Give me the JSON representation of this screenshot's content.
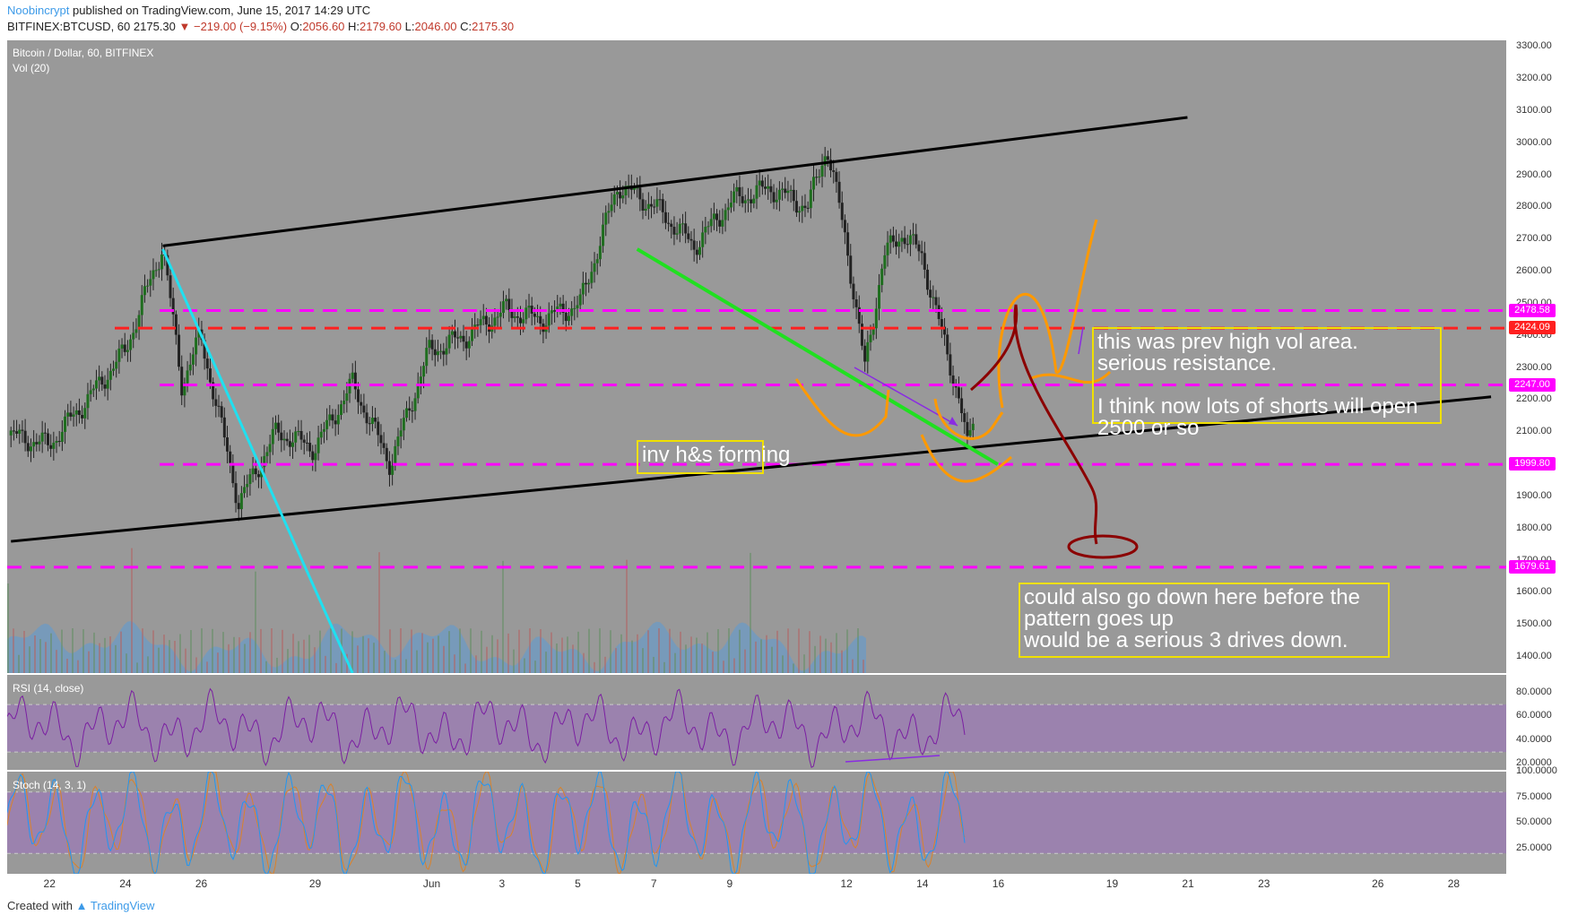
{
  "header": {
    "author": "Noobincrypt",
    "published": "published on TradingView.com, June 15, 2017 14:29 UTC",
    "symbol": "BITFINEX:BTCUSD, 60",
    "last": "2175.30",
    "change": "▼ −219.00 (−9.15%)",
    "o_label": "O:",
    "o": "2056.60",
    "h_label": "H:",
    "h": "2179.60",
    "l_label": "L:",
    "l": "2046.00",
    "c_label": "C:",
    "c": "2175.30"
  },
  "pane_labels": {
    "main_title": "Bitcoin / Dollar, 60, BITFINEX",
    "vol": "Vol (20)",
    "rsi": "RSI (14, close)",
    "stoch": "Stoch (14, 3, 1)"
  },
  "notes": {
    "resistance": "this was prev high vol area.\nserious resistance.\n\nI think now lots of shorts will open\n2500 or so",
    "invhs": "inv h&s forming",
    "drives": "could also go down here before the\npattern goes up\nwould be a serious 3 drives down."
  },
  "footer": {
    "created": "Created with",
    "brand": "TradingView"
  },
  "colors": {
    "pane_bg": "#999999",
    "magenta": "#ff00ff",
    "red_line": "#ff2020",
    "note_border": "#f0e000",
    "cyan": "#20e0f0",
    "green": "#20e020",
    "orange": "#ff9900",
    "darkred": "#8b0000",
    "purple": "#8a2be2"
  },
  "price_tags": [
    {
      "value": "2478.58",
      "color": "#ff00ff"
    },
    {
      "value": "2424.09",
      "color": "#ff2020"
    },
    {
      "value": "2247.00",
      "color": "#ff00ff"
    },
    {
      "value": "1999.80",
      "color": "#ff00ff"
    },
    {
      "value": "1679.61",
      "color": "#ff00ff"
    }
  ],
  "chart_data": [
    {
      "type": "candlestick",
      "title": "Bitcoin / Dollar, 60, BITFINEX",
      "ylim": [
        1350,
        3320
      ],
      "y_ticks": [
        "3300.00",
        "3200.00",
        "3100.00",
        "3000.00",
        "2900.00",
        "2800.00",
        "2700.00",
        "2600.00",
        "2500.00",
        "2400.00",
        "2300.00",
        "2200.00",
        "2100.00",
        "2000.00",
        "1900.00",
        "1800.00",
        "1700.00",
        "1600.00",
        "1500.00",
        "1400.00"
      ],
      "x_ticks": [
        "22",
        "24",
        "26",
        "29",
        "Jun",
        "3",
        "5",
        "7",
        "9",
        "12",
        "14",
        "16",
        "19",
        "21",
        "23",
        "26",
        "28"
      ],
      "price_path": [
        {
          "x": "May 21",
          "y": 2090
        },
        {
          "x": "May 22",
          "y": 2060
        },
        {
          "x": "May 23",
          "y": 2200
        },
        {
          "x": "May 24",
          "y": 2350
        },
        {
          "x": "May 25",
          "y": 2680
        },
        {
          "x": "May 25.5",
          "y": 2250
        },
        {
          "x": "May 26",
          "y": 2400
        },
        {
          "x": "May 27",
          "y": 1880
        },
        {
          "x": "May 28",
          "y": 2100
        },
        {
          "x": "May 29",
          "y": 2050
        },
        {
          "x": "May 30",
          "y": 2250
        },
        {
          "x": "May 31",
          "y": 2000
        },
        {
          "x": "Jun 1",
          "y": 2350
        },
        {
          "x": "Jun 2",
          "y": 2400
        },
        {
          "x": "Jun 3",
          "y": 2480
        },
        {
          "x": "Jun 4",
          "y": 2450
        },
        {
          "x": "Jun 5",
          "y": 2500
        },
        {
          "x": "Jun 6",
          "y": 2870
        },
        {
          "x": "Jun 7",
          "y": 2800
        },
        {
          "x": "Jun 8",
          "y": 2680
        },
        {
          "x": "Jun 9",
          "y": 2820
        },
        {
          "x": "Jun 10",
          "y": 2860
        },
        {
          "x": "Jun 11",
          "y": 2800
        },
        {
          "x": "Jun 11.5",
          "y": 2990
        },
        {
          "x": "Jun 12",
          "y": 2700
        },
        {
          "x": "Jun 12.5",
          "y": 2300
        },
        {
          "x": "Jun 13",
          "y": 2650
        },
        {
          "x": "Jun 13.5",
          "y": 2720
        },
        {
          "x": "Jun 14",
          "y": 2650
        },
        {
          "x": "Jun 14.5",
          "y": 2420
        },
        {
          "x": "Jun 15",
          "y": 2200
        },
        {
          "x": "Jun 15.2",
          "y": 2050
        },
        {
          "x": "Jun 15.4",
          "y": 2175
        }
      ],
      "drawings": {
        "horizontal_levels": [
          {
            "value": 2478.58,
            "color": "magenta",
            "style": "dashed"
          },
          {
            "value": 2424.09,
            "color": "red",
            "style": "dashed"
          },
          {
            "value": 2247.0,
            "color": "magenta",
            "style": "dashed"
          },
          {
            "value": 1999.8,
            "color": "magenta",
            "style": "dashed"
          },
          {
            "value": 1679.61,
            "color": "magenta",
            "style": "dashed"
          }
        ],
        "channel_top": [
          {
            "x": "May 25",
            "y": 2680
          },
          {
            "x": "Jun 21",
            "y": 3080
          }
        ],
        "channel_bottom": [
          {
            "x": "May 21",
            "y": 1760
          },
          {
            "x": "Jun 29",
            "y": 2210
          }
        ],
        "cyan_trend": [
          {
            "x": "May 25",
            "y": 2670
          },
          {
            "x": "May 30",
            "y": 1350
          }
        ],
        "green_trend": [
          {
            "x": "Jun 6.5",
            "y": 2670
          },
          {
            "x": "Jun 16",
            "y": 2000
          }
        ]
      }
    },
    {
      "type": "line",
      "title": "RSI (14, close)",
      "ylim": [
        15,
        95
      ],
      "y_ticks": [
        "80.0000",
        "60.0000",
        "40.0000",
        "20.0000"
      ],
      "bands": [
        70,
        30
      ]
    },
    {
      "type": "line",
      "title": "Stoch (14, 3, 1)",
      "ylim": [
        0,
        100
      ],
      "y_ticks": [
        "100.0000",
        "75.0000",
        "50.0000",
        "25.0000"
      ],
      "bands": [
        80,
        20
      ]
    }
  ]
}
